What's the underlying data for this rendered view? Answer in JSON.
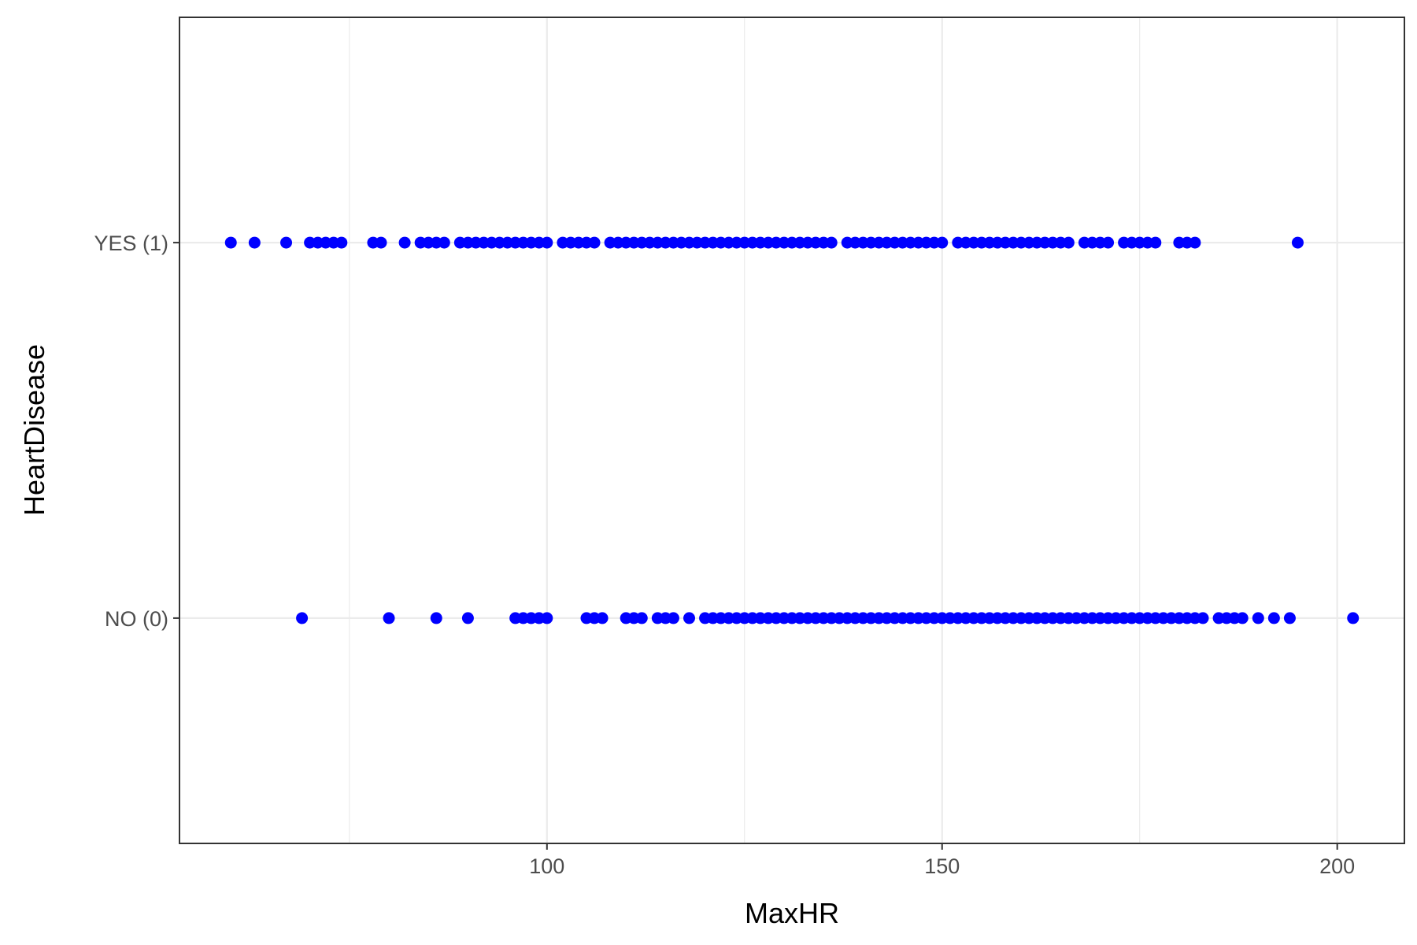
{
  "chart_data": {
    "type": "scatter",
    "title": "",
    "xlabel": "MaxHR",
    "ylabel": "HeartDisease",
    "xlim": [
      53.5,
      208.5
    ],
    "x_ticks": [
      100,
      150,
      200
    ],
    "x_minor_ticks": [
      75,
      125,
      175
    ],
    "y_categories": [
      "NO (0)",
      "YES (1)"
    ],
    "grid": true,
    "legend": "none",
    "point_color": "#0000ff",
    "series": [
      {
        "category": "YES (1)",
        "x": [
          60,
          63,
          67,
          70,
          71,
          72,
          73,
          74,
          78,
          79,
          82,
          84,
          85,
          86,
          87,
          89,
          90,
          91,
          92,
          93,
          94,
          95,
          96,
          97,
          98,
          99,
          100,
          102,
          103,
          104,
          105,
          106,
          108,
          109,
          110,
          111,
          112,
          113,
          114,
          115,
          116,
          117,
          118,
          119,
          120,
          121,
          122,
          123,
          124,
          125,
          126,
          127,
          128,
          129,
          130,
          131,
          132,
          133,
          134,
          135,
          136,
          138,
          139,
          140,
          141,
          142,
          143,
          144,
          145,
          146,
          147,
          148,
          149,
          150,
          152,
          153,
          154,
          155,
          156,
          157,
          158,
          159,
          160,
          161,
          162,
          163,
          164,
          165,
          166,
          168,
          169,
          170,
          171,
          173,
          174,
          175,
          176,
          177,
          180,
          181,
          182,
          195
        ]
      },
      {
        "category": "NO (0)",
        "x": [
          69,
          80,
          86,
          90,
          96,
          97,
          98,
          99,
          100,
          105,
          106,
          107,
          110,
          111,
          112,
          114,
          115,
          116,
          118,
          120,
          121,
          122,
          123,
          124,
          125,
          126,
          127,
          128,
          129,
          130,
          131,
          132,
          133,
          134,
          135,
          136,
          137,
          138,
          139,
          140,
          141,
          142,
          143,
          144,
          145,
          146,
          147,
          148,
          149,
          150,
          151,
          152,
          153,
          154,
          155,
          156,
          157,
          158,
          159,
          160,
          161,
          162,
          163,
          164,
          165,
          166,
          167,
          168,
          169,
          170,
          171,
          172,
          173,
          174,
          175,
          176,
          177,
          178,
          179,
          180,
          181,
          182,
          183,
          185,
          186,
          187,
          188,
          190,
          192,
          194,
          202
        ]
      }
    ]
  }
}
